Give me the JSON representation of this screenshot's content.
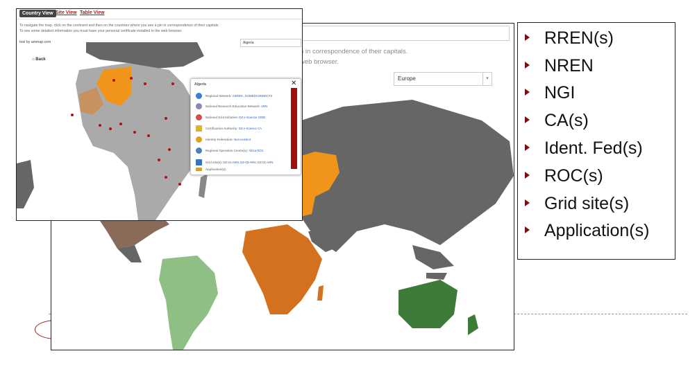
{
  "back_window": {
    "instruction_line1": "n in correspondence of their capitals.",
    "instruction_line2": "web browser.",
    "region_select": "Europe"
  },
  "front_window": {
    "tabs": [
      {
        "label": "Country View"
      },
      {
        "label": "Site View"
      },
      {
        "label": "Table View"
      }
    ],
    "instruction_line1": "To navigate the map, click on the continent and then on the countries where you see a pin in correspondence of their capitals.",
    "instruction_line2": "To see some detailed information you must have your personal certificate installed in the web browser.",
    "tool_credit": "tool by ammap.com",
    "country_select": "Algeria",
    "back_label": "Back",
    "popup": {
      "title": "Algeria",
      "close_glyph": "✕",
      "rows": [
        {
          "label": "Regional Network:",
          "value": "ASREN , EUMEDCONNECT2",
          "icon": "globe-icon",
          "color": "#3b7fcf"
        },
        {
          "label": "National Research Education Network:",
          "value": "ARN",
          "icon": "network-icon",
          "color": "#8a8ab0"
        },
        {
          "label": "National Grid Initiative:",
          "value": "DZ e-Science GRID",
          "icon": "grid-icon",
          "color": "#d05050"
        },
        {
          "label": "Certification Authority:",
          "value": "DZ e-Science CA",
          "icon": "certificate-icon",
          "color": "#e0b030"
        },
        {
          "label": "Identity Federation:",
          "value": "Non existent",
          "icon": "id-icon",
          "color": "#e0a020"
        },
        {
          "label": "Regional Operation Centre(s):",
          "value": "Africa ROC",
          "icon": "roc-icon",
          "color": "#4a7fc0"
        },
        {
          "label": "Grid site(s):",
          "value": "DZ-01-ARN, DZ-03-ARN, DZ-01-ARN",
          "icon": "server-icon",
          "color": "#3a70c0"
        },
        {
          "label": "Application(s):",
          "value": "",
          "icon": "app-icon",
          "color": "#d0a030"
        }
      ]
    }
  },
  "bullet_list": {
    "items": [
      {
        "label": "RREN(s)"
      },
      {
        "label": "NREN"
      },
      {
        "label": "NGI"
      },
      {
        "label": "CA(s)"
      },
      {
        "label": "Ident. Fed(s)"
      },
      {
        "label": "ROC(s)"
      },
      {
        "label": "Grid site(s)"
      },
      {
        "label": "Application(s)"
      }
    ],
    "bullet_color": "#7a1010"
  },
  "map_colors": {
    "highlight_orange": "#f0951a",
    "africa": "#d4711e",
    "north_america": "#8a6a58",
    "south_america": "#8fbf85",
    "oceania": "#3e7a38",
    "default_land": "#666666",
    "africa_country": "#aaaaaa"
  }
}
